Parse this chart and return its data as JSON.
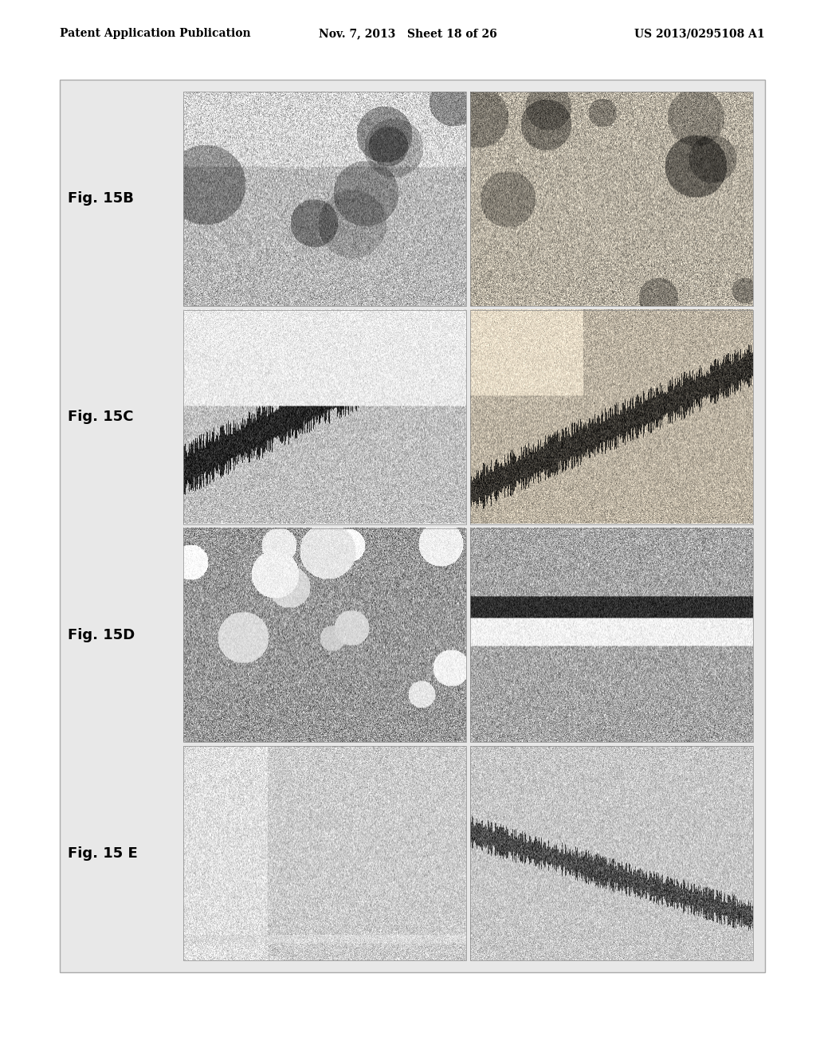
{
  "page_title_left": "Patent Application Publication",
  "page_title_mid": "Nov. 7, 2013   Sheet 18 of 26",
  "page_title_right": "US 2013/0295108 A1",
  "header_fontsize": 10,
  "background_color": "#ffffff",
  "panel_bg": "#e8e8e8",
  "outer_box_color": "#d0d0d0",
  "figure_labels": [
    "Fig. 15B",
    "Fig. 15C",
    "Fig. 15D",
    "Fig. 15 E"
  ],
  "label_fontsize": 13,
  "label_bold": true,
  "rows": 4,
  "cols": 2,
  "image_noise_seeds": [
    42,
    43,
    44,
    45,
    46,
    47,
    48,
    49
  ],
  "image_textures": [
    "light_speckle",
    "light_speckle_warm",
    "dark_branch",
    "dark_branch_warm",
    "medium_speckle",
    "medium_speckle_light",
    "light_uniform",
    "light_branch"
  ]
}
